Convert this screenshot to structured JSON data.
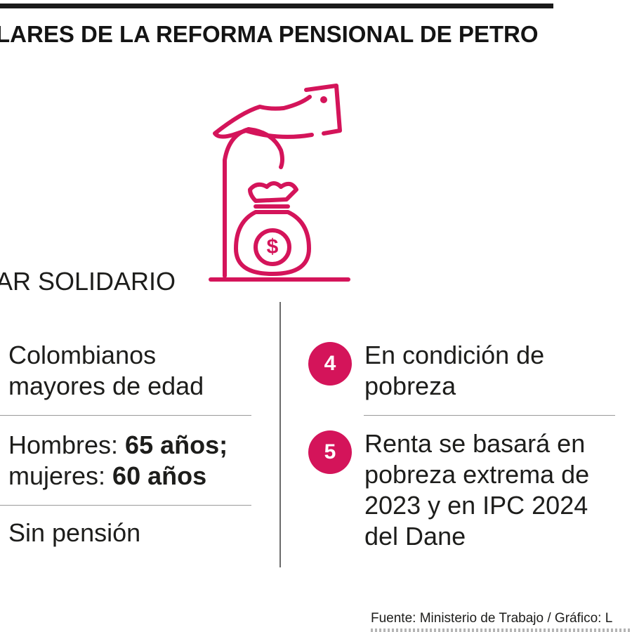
{
  "headline": "LARES DE LA REFORMA PENSIONAL DE PETRO",
  "pillar_title": "AR SOLIDARIO",
  "accent_color": "#d4145a",
  "icon": "hand-money-bag-icon",
  "left_items": [
    {
      "line1": "Colombianos",
      "line2": "mayores de edad"
    },
    {
      "prefix1": "Hombres: ",
      "bold1": "65 años;",
      "prefix2": "mujeres: ",
      "bold2": "60 años"
    },
    {
      "line1": "Sin pensión"
    }
  ],
  "right_items": [
    {
      "number": "4",
      "lines": [
        "En condición de",
        "pobreza"
      ]
    },
    {
      "number": "5",
      "lines": [
        "Renta se basará en",
        "pobreza extrema de",
        "2023 y en IPC 2024",
        "del Dane"
      ]
    }
  ],
  "source": "Fuente: Ministerio de Trabajo / Gráfico: L"
}
